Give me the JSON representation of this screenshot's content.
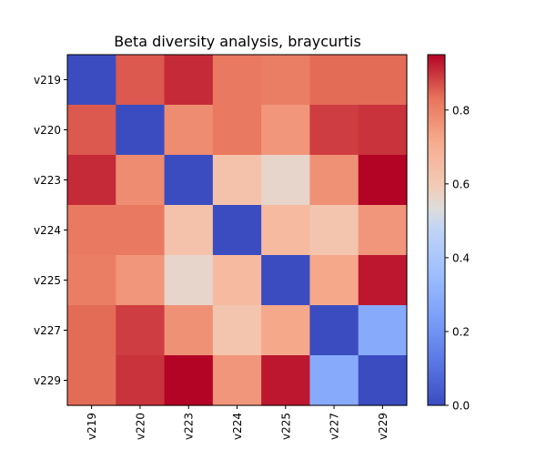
{
  "chart_data": {
    "type": "heatmap",
    "title": "Beta diversity analysis, braycurtis",
    "xlabel": "",
    "ylabel": "",
    "rows": [
      "v219",
      "v220",
      "v223",
      "v224",
      "v225",
      "v227",
      "v229"
    ],
    "cols": [
      "v219",
      "v220",
      "v223",
      "v224",
      "v225",
      "v227",
      "v229"
    ],
    "values": [
      [
        0.0,
        0.86,
        0.91,
        0.82,
        0.81,
        0.84,
        0.84
      ],
      [
        0.86,
        0.0,
        0.78,
        0.82,
        0.76,
        0.89,
        0.9
      ],
      [
        0.91,
        0.78,
        0.0,
        0.63,
        0.56,
        0.77,
        0.95
      ],
      [
        0.82,
        0.82,
        0.63,
        0.0,
        0.66,
        0.62,
        0.76
      ],
      [
        0.81,
        0.76,
        0.56,
        0.66,
        0.0,
        0.72,
        0.93
      ],
      [
        0.84,
        0.89,
        0.77,
        0.62,
        0.72,
        0.0,
        0.28
      ],
      [
        0.84,
        0.9,
        0.95,
        0.76,
        0.93,
        0.28,
        0.0
      ]
    ],
    "colormap": "coolwarm",
    "vmin": 0.0,
    "vmax": 0.95,
    "colorbar_ticks": [
      "0.0",
      "0.2",
      "0.4",
      "0.6",
      "0.8"
    ],
    "colorbar_tick_values": [
      0.0,
      0.2,
      0.4,
      0.6,
      0.8
    ],
    "grid": false,
    "legend": "colorbar-right"
  }
}
